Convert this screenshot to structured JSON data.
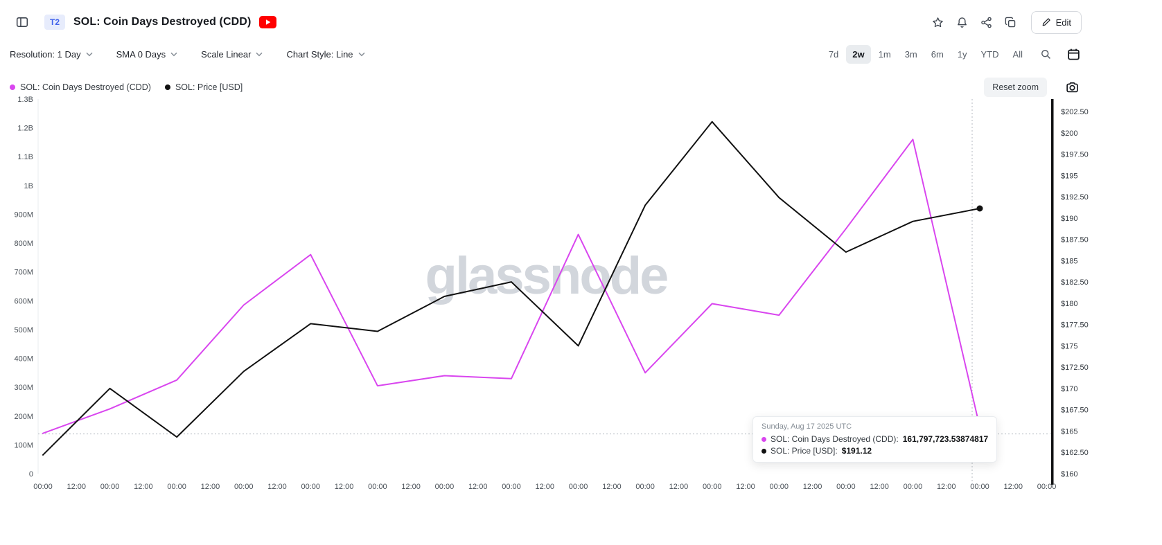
{
  "header": {
    "badge": "T2",
    "title": "SOL: Coin Days Destroyed (CDD)",
    "edit_label": "Edit"
  },
  "toolbar": {
    "dropdowns": [
      {
        "label": "Resolution: 1 Day"
      },
      {
        "label": "SMA 0 Days"
      },
      {
        "label": "Scale Linear"
      },
      {
        "label": "Chart Style: Line"
      }
    ],
    "ranges": [
      {
        "label": "7d",
        "active": false
      },
      {
        "label": "2w",
        "active": true
      },
      {
        "label": "1m",
        "active": false
      },
      {
        "label": "3m",
        "active": false
      },
      {
        "label": "6m",
        "active": false
      },
      {
        "label": "1y",
        "active": false
      },
      {
        "label": "YTD",
        "active": false
      },
      {
        "label": "All",
        "active": false
      }
    ]
  },
  "legend": [
    {
      "label": "SOL: Coin Days Destroyed (CDD)",
      "color": "#d946ef"
    },
    {
      "label": "SOL: Price [USD]",
      "color": "#111111"
    }
  ],
  "reset_zoom_label": "Reset zoom",
  "tooltip": {
    "date": "Sunday, Aug 17 2025 UTC",
    "rows": [
      {
        "label": "SOL: Coin Days Destroyed (CDD):",
        "value": "161,797,723.53874817",
        "color": "#d946ef"
      },
      {
        "label": "SOL: Price [USD]:",
        "value": "$191.12",
        "color": "#111111"
      }
    ]
  },
  "chart_data": {
    "type": "line",
    "watermark": "glassnode",
    "watermark_color": "#d2d6dc",
    "x_labels": [
      "00:00",
      "12:00",
      "00:00",
      "12:00",
      "00:00",
      "12:00",
      "00:00",
      "12:00",
      "00:00",
      "12:00",
      "00:00",
      "12:00",
      "00:00",
      "12:00",
      "00:00",
      "12:00",
      "00:00",
      "12:00",
      "00:00",
      "12:00",
      "00:00",
      "12:00",
      "00:00",
      "12:00",
      "00:00",
      "12:00",
      "00:00",
      "12:00",
      "00:00",
      "12:00",
      "00:00"
    ],
    "left_axis": {
      "min": 0,
      "max": 1300000000,
      "ticks": [
        "1.3B",
        "1.2B",
        "1.1B",
        "1B",
        "900M",
        "800M",
        "700M",
        "600M",
        "500M",
        "400M",
        "300M",
        "200M",
        "100M",
        "0"
      ]
    },
    "right_axis": {
      "min": 160,
      "max": 202.5,
      "ticks": [
        "$202.50",
        "$200",
        "$197.50",
        "$195",
        "$192.50",
        "$190",
        "$187.50",
        "$185",
        "$182.50",
        "$180",
        "$177.50",
        "$175",
        "$172.50",
        "$170",
        "$167.50",
        "$165",
        "$162.50",
        "$160"
      ]
    },
    "series": [
      {
        "name": "SOL: Coin Days Destroyed (CDD)",
        "axis": "left",
        "color": "#d946ef",
        "values": [
          140000000,
          225000000,
          325000000,
          585000000,
          760000000,
          305000000,
          340000000,
          330000000,
          830000000,
          350000000,
          590000000,
          550000000,
          850000000,
          1160000000,
          161797723.53874817
        ]
      },
      {
        "name": "SOL: Price [USD]",
        "axis": "right",
        "color": "#111111",
        "values": [
          162.2,
          170.0,
          164.3,
          172.0,
          177.6,
          176.7,
          180.8,
          182.5,
          175.0,
          191.5,
          201.3,
          192.4,
          186.0,
          189.6,
          191.12
        ]
      }
    ]
  }
}
